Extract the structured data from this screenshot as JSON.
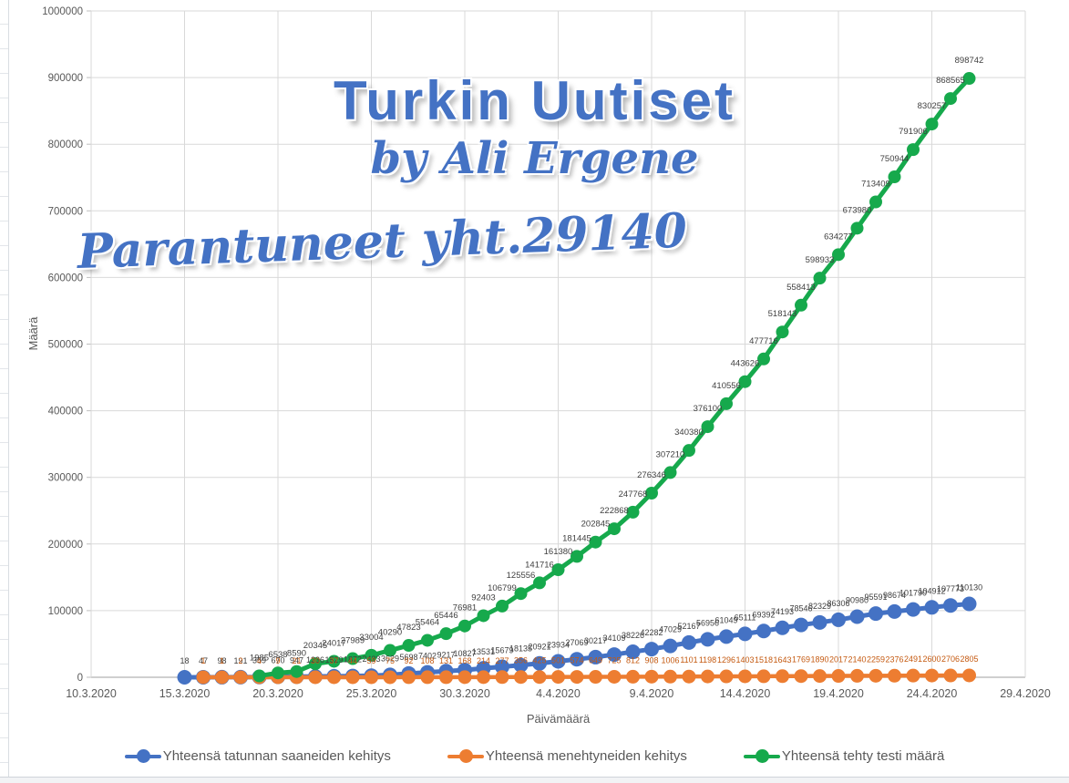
{
  "title": {
    "main": "Turkin Uutiset",
    "byline": "by Ali Ergene",
    "annotation": "Parantuneet yht.29140"
  },
  "axes": {
    "x_title": "Päivämäärä",
    "y_title": "Määrä",
    "x_tick_labels": [
      "10.3.2020",
      "15.3.2020",
      "20.3.2020",
      "25.3.2020",
      "30.3.2020",
      "4.4.2020",
      "9.4.2020",
      "14.4.2020",
      "19.4.2020",
      "24.4.2020",
      "29.4.2020"
    ],
    "y_tick_labels": [
      "0",
      "100000",
      "200000",
      "300000",
      "400000",
      "500000",
      "600000",
      "700000",
      "800000",
      "900000",
      "1000000"
    ]
  },
  "colors": {
    "blue": "#4472C4",
    "orange": "#ED7D31",
    "green": "#16A94C",
    "grid": "#D9D9D9",
    "axis_line": "#BFBFBF",
    "tick_text": "#595959",
    "label_dark": "#404040",
    "label_orange": "#C55A11"
  },
  "chart_data": {
    "type": "line",
    "title": "Turkin Uutiset by Ali Ergene",
    "xlabel": "Päivämäärä",
    "ylabel": "Määrä",
    "ylim": [
      0,
      1000000
    ],
    "y_step": 100000,
    "grid": true,
    "legend_position": "bottom",
    "x_axis": {
      "start_label": "10.3.2020",
      "end_label": "29.4.2020",
      "total_days": 50,
      "tick_interval_days": 5
    },
    "series": [
      {
        "name": "Yhteensä tatunnan saaneiden kehitys",
        "color_key": "blue",
        "label_color_key": "label_dark",
        "start_date": "15.3.2020",
        "start_day_offset": 5,
        "values": [
          18,
          47,
          98,
          191,
          359,
          670,
          947,
          1236,
          1529,
          1872,
          2433,
          3629,
          5698,
          7402,
          9217,
          10827,
          13531,
          15679,
          18135,
          20921,
          23934,
          27069,
          30217,
          34109,
          38226,
          42282,
          47029,
          52167,
          56956,
          61049,
          65111,
          69392,
          74193,
          78546,
          82329,
          86306,
          90980,
          95591,
          98674,
          101790,
          104912,
          107773,
          110130
        ]
      },
      {
        "name": "Yhteensä menehtyneiden kehitys",
        "color_key": "orange",
        "label_color_key": "label_orange",
        "start_date": "16.3.2020",
        "start_day_offset": 6,
        "values": [
          1,
          1,
          2,
          4,
          9,
          21,
          30,
          37,
          44,
          59,
          75,
          92,
          108,
          131,
          168,
          214,
          277,
          356,
          425,
          501,
          574,
          649,
          725,
          812,
          908,
          1006,
          1101,
          1198,
          1296,
          1403,
          1518,
          1643,
          1769,
          1890,
          2017,
          2140,
          2259,
          2376,
          2491,
          2600,
          2706,
          2805
        ]
      },
      {
        "name": "Yhteensä tehty testi määrä",
        "color_key": "green",
        "label_color_key": "label_dark",
        "start_date": "19.3.2020",
        "start_day_offset": 9,
        "values": [
          1985,
          6538,
          8590,
          20345,
          24017,
          27989,
          33004,
          40290,
          47823,
          55464,
          65446,
          76981,
          92403,
          106799,
          125556,
          141716,
          161380,
          181445,
          202845,
          222868,
          247768,
          276346,
          307210,
          340380,
          376100,
          410556,
          443626,
          477716,
          518143,
          558413,
          598933,
          634277,
          673980,
          713409,
          750944,
          791906,
          830257,
          868565,
          898742
        ]
      }
    ]
  },
  "legend": {
    "items": [
      {
        "label": "Yhteensä tatunnan saaneiden kehitys",
        "color_key": "blue"
      },
      {
        "label": "Yhteensä menehtyneiden kehitys",
        "color_key": "orange"
      },
      {
        "label": "Yhteensä tehty testi määrä",
        "color_key": "green"
      }
    ]
  }
}
